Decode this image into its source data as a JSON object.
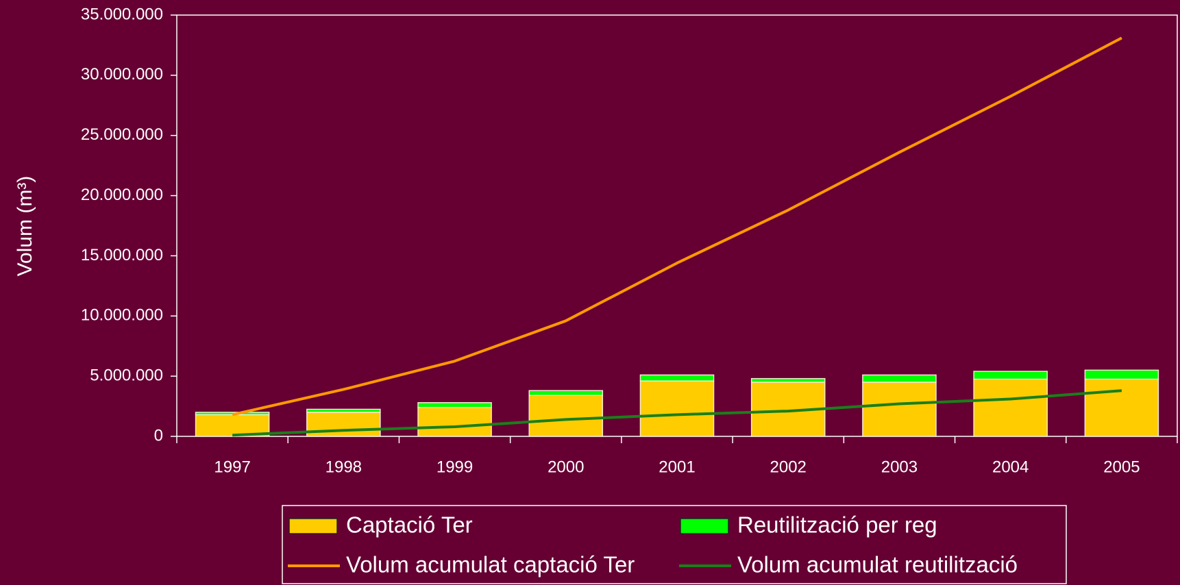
{
  "chart_data": {
    "type": "bar",
    "y_label": "Volum (m³)",
    "categories": [
      "1997",
      "1998",
      "1999",
      "2000",
      "2001",
      "2002",
      "2003",
      "2004",
      "2005"
    ],
    "stacked": true,
    "series": [
      {
        "name": "Captació Ter",
        "type": "bar",
        "color": "#ffcc00",
        "values": [
          1800000,
          2000000,
          2400000,
          3400000,
          4600000,
          4500000,
          4500000,
          4750000,
          4750000
        ]
      },
      {
        "name": "Reutilització per reg",
        "type": "bar",
        "color": "#00ff00",
        "values": [
          200000,
          250000,
          400000,
          400000,
          500000,
          300000,
          600000,
          650000,
          750000
        ]
      },
      {
        "name": "Volum acumulat captació Ter",
        "type": "line",
        "color": "#ff9900",
        "values": [
          1800000,
          3900000,
          6250000,
          9600000,
          14400000,
          18800000,
          23600000,
          28250000,
          33100000
        ]
      },
      {
        "name": "Volum acumulat reutilització",
        "type": "line",
        "color": "#1a7f1a",
        "values": [
          100000,
          500000,
          800000,
          1400000,
          1800000,
          2100000,
          2700000,
          3100000,
          3800000
        ]
      }
    ],
    "ylim": [
      0,
      35000000
    ],
    "yticks": [
      0,
      {
        "value": 5000000,
        "label": "5.000.000"
      },
      {
        "value": 10000000,
        "label": "10.000.000"
      },
      {
        "value": 15000000,
        "label": "15.000.000"
      },
      {
        "value": 20000000,
        "label": "20.000.000"
      },
      {
        "value": 25000000,
        "label": "25.000.000"
      },
      {
        "value": 30000000,
        "label": "30.000.000"
      },
      {
        "value": 35000000,
        "label": "35.000.000"
      }
    ],
    "legend": "bottom"
  }
}
